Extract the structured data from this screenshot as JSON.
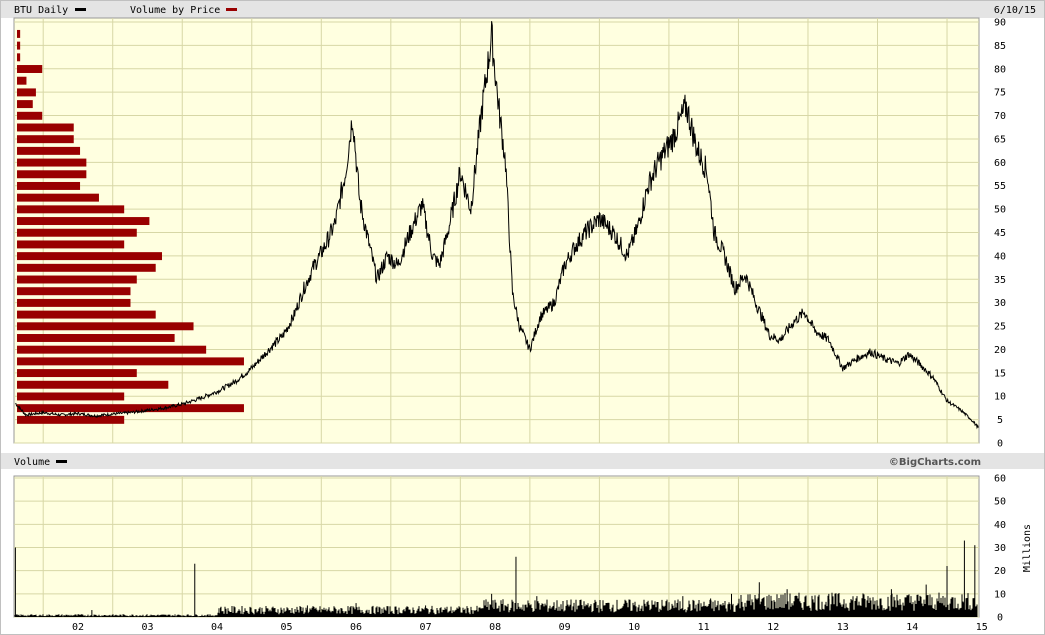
{
  "header": {
    "symbol_label": "BTU Daily",
    "vbp_label": "Volume by Price",
    "date": "6/10/15"
  },
  "volume_header": {
    "label": "Volume",
    "brand": "©BigCharts.com"
  },
  "colors": {
    "background": "#ffffe0",
    "grid": "#d7d7a6",
    "price_line": "#000000",
    "vbp_bar": "#990000",
    "header_bg": "#e4e4e4"
  },
  "chart_data": [
    {
      "type": "line",
      "title": "BTU Daily",
      "xlabel": "",
      "ylabel": "",
      "x_ticks": [
        "02",
        "03",
        "04",
        "05",
        "06",
        "07",
        "08",
        "09",
        "10",
        "11",
        "12",
        "13",
        "14",
        "15"
      ],
      "y_ticks": [
        "0",
        "5",
        "10",
        "15",
        "20",
        "25",
        "30",
        "35",
        "40",
        "45",
        "50",
        "55",
        "60",
        "65",
        "70",
        "75",
        "80",
        "85",
        "90"
      ],
      "ylim": [
        0,
        90
      ],
      "xlim": [
        2001.58,
        2015.46
      ],
      "grid": true,
      "series": [
        {
          "name": "BTU Daily",
          "points": [
            [
              2001.6,
              8.5
            ],
            [
              2001.75,
              6.0
            ],
            [
              2002.0,
              6.5
            ],
            [
              2002.25,
              6.0
            ],
            [
              2002.5,
              6.3
            ],
            [
              2002.75,
              5.8
            ],
            [
              2003.0,
              6.2
            ],
            [
              2003.25,
              6.5
            ],
            [
              2003.5,
              7.0
            ],
            [
              2003.75,
              7.5
            ],
            [
              2004.0,
              8.3
            ],
            [
              2004.25,
              9.5
            ],
            [
              2004.5,
              11.0
            ],
            [
              2004.75,
              13.0
            ],
            [
              2005.0,
              16.0
            ],
            [
              2005.25,
              20.0
            ],
            [
              2005.45,
              23.0
            ],
            [
              2005.6,
              27.0
            ],
            [
              2005.75,
              33.0
            ],
            [
              2005.9,
              38.0
            ],
            [
              2006.05,
              42.0
            ],
            [
              2006.2,
              47.0
            ],
            [
              2006.35,
              58.0
            ],
            [
              2006.45,
              70.0
            ],
            [
              2006.55,
              52.0
            ],
            [
              2006.65,
              45.0
            ],
            [
              2006.8,
              35.0
            ],
            [
              2006.95,
              40.0
            ],
            [
              2007.1,
              38.0
            ],
            [
              2007.25,
              44.0
            ],
            [
              2007.45,
              51.0
            ],
            [
              2007.6,
              40.0
            ],
            [
              2007.7,
              38.0
            ],
            [
              2007.85,
              47.0
            ],
            [
              2008.0,
              58.0
            ],
            [
              2008.15,
              50.0
            ],
            [
              2008.3,
              70.0
            ],
            [
              2008.45,
              87.0
            ],
            [
              2008.55,
              72.0
            ],
            [
              2008.65,
              60.0
            ],
            [
              2008.75,
              32.0
            ],
            [
              2008.85,
              25.0
            ],
            [
              2009.0,
              20.0
            ],
            [
              2009.15,
              27.0
            ],
            [
              2009.35,
              30.0
            ],
            [
              2009.5,
              38.0
            ],
            [
              2009.65,
              42.0
            ],
            [
              2009.8,
              45.0
            ],
            [
              2010.0,
              48.0
            ],
            [
              2010.2,
              45.0
            ],
            [
              2010.4,
              40.0
            ],
            [
              2010.55,
              46.0
            ],
            [
              2010.7,
              55.0
            ],
            [
              2010.85,
              60.0
            ],
            [
              2011.05,
              65.0
            ],
            [
              2011.25,
              72.0
            ],
            [
              2011.4,
              63.0
            ],
            [
              2011.55,
              58.0
            ],
            [
              2011.65,
              45.0
            ],
            [
              2011.8,
              40.0
            ],
            [
              2011.95,
              33.0
            ],
            [
              2012.1,
              36.0
            ],
            [
              2012.25,
              30.0
            ],
            [
              2012.45,
              23.0
            ],
            [
              2012.6,
              22.0
            ],
            [
              2012.8,
              26.0
            ],
            [
              2012.95,
              28.0
            ],
            [
              2013.1,
              24.0
            ],
            [
              2013.3,
              22.0
            ],
            [
              2013.5,
              16.0
            ],
            [
              2013.7,
              18.0
            ],
            [
              2013.9,
              19.5
            ],
            [
              2014.1,
              18.0
            ],
            [
              2014.3,
              17.0
            ],
            [
              2014.45,
              19.0
            ],
            [
              2014.6,
              17.0
            ],
            [
              2014.8,
              14.0
            ],
            [
              2015.0,
              9.0
            ],
            [
              2015.2,
              7.0
            ],
            [
              2015.35,
              5.0
            ],
            [
              2015.45,
              3.3
            ]
          ]
        }
      ]
    },
    {
      "type": "bar",
      "title": "Volume by Price",
      "orientation": "horizontal",
      "price_levels": [
        90,
        87.5,
        85,
        82.5,
        80,
        77.5,
        75,
        72.5,
        70,
        67.5,
        65,
        62.5,
        60,
        57.5,
        55,
        52.5,
        50,
        47.5,
        45,
        42.5,
        40,
        37.5,
        35,
        32.5,
        30,
        27.5,
        25,
        22.5,
        20,
        17.5,
        15,
        12.5,
        10,
        7.5,
        5,
        2.5
      ],
      "values": [
        0,
        0.5,
        0.5,
        0.5,
        4,
        1.5,
        3,
        2.5,
        4,
        9,
        9,
        10,
        11,
        11,
        10,
        13,
        17,
        21,
        19,
        17,
        23,
        22,
        19,
        18,
        18,
        22,
        28,
        25,
        30,
        36,
        19,
        24,
        17,
        36,
        17,
        0
      ],
      "scale_max": 150
    },
    {
      "type": "bar",
      "title": "Volume",
      "ylabel": "Millions",
      "ylim": [
        0,
        60
      ],
      "y_ticks": [
        "0",
        "10",
        "20",
        "30",
        "40",
        "50",
        "60"
      ],
      "baseline_millions": 3,
      "spikes": [
        [
          2001.6,
          30
        ],
        [
          2002.7,
          3
        ],
        [
          2004.18,
          23
        ],
        [
          2004.55,
          4
        ],
        [
          2005.8,
          5
        ],
        [
          2006.5,
          6
        ],
        [
          2007.5,
          5
        ],
        [
          2008.45,
          10
        ],
        [
          2008.8,
          26
        ],
        [
          2009.1,
          9
        ],
        [
          2010.7,
          7
        ],
        [
          2011.2,
          9
        ],
        [
          2011.6,
          8
        ],
        [
          2011.9,
          10
        ],
        [
          2012.3,
          15
        ],
        [
          2012.7,
          12
        ],
        [
          2013.3,
          10
        ],
        [
          2014.2,
          12
        ],
        [
          2014.7,
          14
        ],
        [
          2015.0,
          22
        ],
        [
          2015.25,
          33
        ],
        [
          2015.4,
          31
        ]
      ]
    }
  ]
}
